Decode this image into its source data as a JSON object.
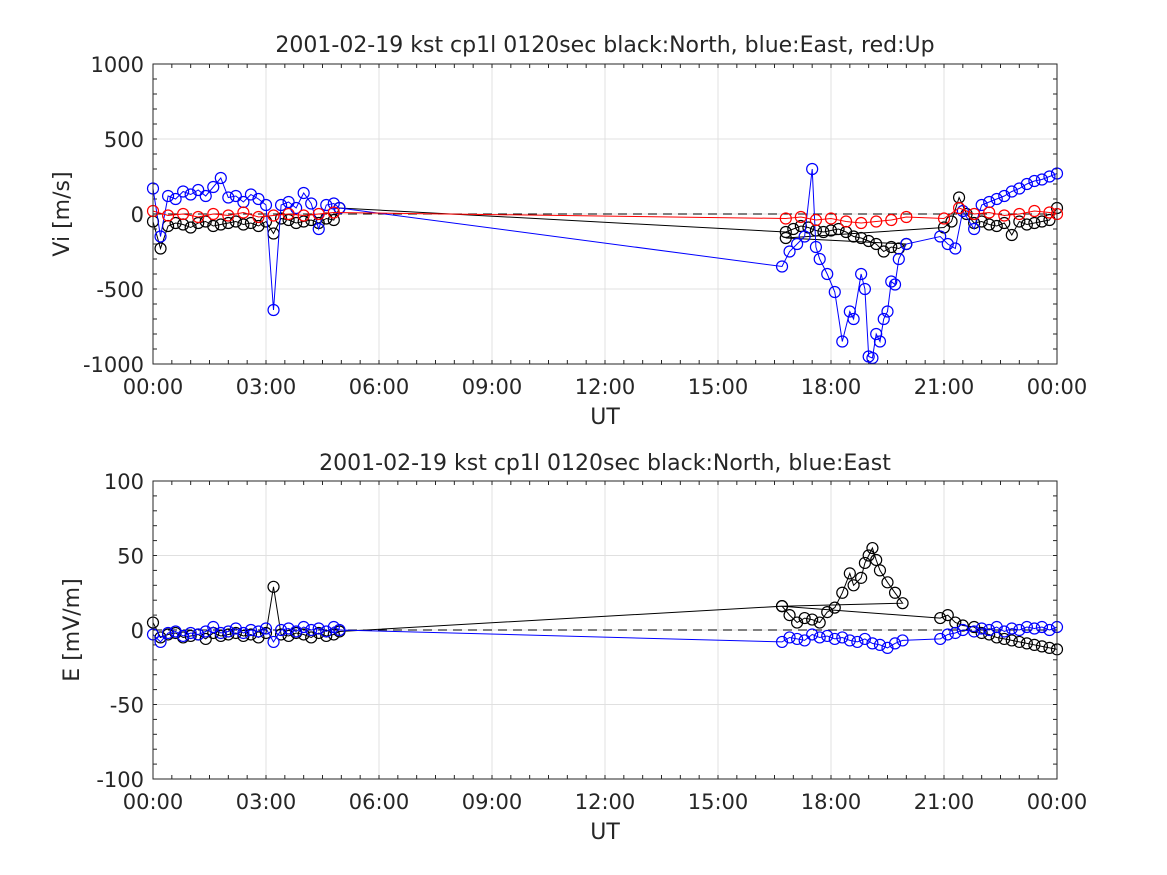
{
  "chart_data": [
    {
      "type": "line",
      "title": "2001-02-19 kst cp1l 0120sec black:North, blue:East, red:Up",
      "xlabel": "UT",
      "ylabel": "Vi [m/s]",
      "xlim_hours": [
        0,
        24
      ],
      "ylim": [
        -1000,
        1000
      ],
      "xticks": [
        "00:00",
        "03:00",
        "06:00",
        "09:00",
        "12:00",
        "15:00",
        "18:00",
        "21:00",
        "00:00"
      ],
      "yticks": [
        "-1000",
        "-500",
        "0",
        "500",
        "1000"
      ],
      "ytick_values": [
        -1000,
        -500,
        0,
        500,
        1000
      ],
      "grid": true,
      "zero_line": true,
      "series": [
        {
          "name": "North",
          "color": "#000000",
          "x": [
            0.0,
            0.2,
            0.4,
            0.6,
            0.8,
            1.0,
            1.2,
            1.4,
            1.6,
            1.8,
            2.0,
            2.2,
            2.4,
            2.6,
            2.8,
            3.0,
            3.2,
            3.4,
            3.6,
            3.8,
            4.0,
            4.2,
            4.4,
            4.6,
            4.8,
            4.95,
            16.8,
            17.0,
            17.2,
            17.4,
            17.6,
            17.8,
            18.0,
            18.2,
            18.4,
            18.6,
            18.8,
            19.0,
            19.2,
            19.4,
            19.6,
            19.8,
            20.0,
            16.8,
            21.0,
            21.2,
            21.4,
            21.6,
            21.8,
            22.0,
            22.2,
            22.4,
            22.6,
            22.8,
            23.0,
            23.2,
            23.4,
            23.6,
            23.8,
            24.0
          ],
          "values": [
            -50,
            -230,
            -80,
            -60,
            -70,
            -90,
            -60,
            -50,
            -80,
            -70,
            -60,
            -50,
            -70,
            -60,
            -80,
            -50,
            -130,
            -30,
            -40,
            -60,
            -50,
            -40,
            -60,
            -30,
            -40,
            40,
            -120,
            -100,
            -80,
            -90,
            -110,
            -120,
            -110,
            -100,
            -120,
            -150,
            -160,
            -180,
            -200,
            -250,
            -220,
            -230,
            -200,
            -160,
            -90,
            -50,
            110,
            0,
            -60,
            -50,
            -70,
            -80,
            -60,
            -140,
            -50,
            -70,
            -60,
            -50,
            -40,
            40
          ]
        },
        {
          "name": "East",
          "color": "#0000ff",
          "x": [
            0.0,
            0.2,
            0.4,
            0.6,
            0.8,
            1.0,
            1.2,
            1.4,
            1.6,
            1.8,
            2.0,
            2.2,
            2.4,
            2.6,
            2.8,
            3.0,
            3.2,
            3.4,
            3.6,
            3.8,
            4.0,
            4.2,
            4.4,
            4.6,
            4.8,
            4.95,
            16.7,
            16.9,
            17.1,
            17.3,
            17.5,
            17.6,
            17.7,
            17.9,
            18.1,
            18.3,
            18.5,
            18.6,
            18.8,
            18.9,
            19.0,
            19.1,
            19.2,
            19.3,
            19.4,
            19.5,
            19.6,
            19.7,
            19.8,
            20.0,
            20.9,
            21.1,
            21.3,
            21.5,
            21.8,
            22.0,
            22.2,
            22.4,
            22.6,
            22.8,
            23.0,
            23.2,
            23.4,
            23.6,
            23.8,
            24.0
          ],
          "values": [
            170,
            -150,
            120,
            100,
            150,
            130,
            160,
            120,
            180,
            240,
            110,
            120,
            80,
            130,
            100,
            60,
            -640,
            60,
            80,
            40,
            140,
            70,
            -100,
            60,
            70,
            40,
            -350,
            -250,
            -200,
            -150,
            300,
            -220,
            -300,
            -400,
            -520,
            -850,
            -650,
            -700,
            -400,
            -500,
            -950,
            -960,
            -800,
            -850,
            -700,
            -650,
            -450,
            -470,
            -300,
            -200,
            -150,
            -200,
            -230,
            20,
            -100,
            60,
            80,
            100,
            120,
            150,
            170,
            200,
            220,
            230,
            250,
            270
          ]
        },
        {
          "name": "Up",
          "color": "#ff0000",
          "x": [
            0.0,
            0.4,
            0.8,
            1.2,
            1.6,
            2.0,
            2.4,
            2.8,
            3.2,
            3.6,
            4.0,
            4.4,
            4.8,
            16.8,
            17.2,
            17.6,
            18.0,
            18.4,
            18.8,
            19.2,
            19.6,
            20.0,
            21.0,
            21.4,
            21.8,
            22.2,
            22.6,
            23.0,
            23.4,
            23.8,
            24.0
          ],
          "values": [
            20,
            -10,
            0,
            -20,
            0,
            -10,
            10,
            -20,
            -10,
            0,
            -10,
            0,
            10,
            -30,
            -20,
            -40,
            -30,
            -50,
            -60,
            -50,
            -40,
            -20,
            -30,
            40,
            0,
            10,
            -10,
            0,
            20,
            10,
            0
          ]
        }
      ]
    },
    {
      "type": "line",
      "title": "2001-02-19 kst cp1l 0120sec black:North, blue:East",
      "xlabel": "UT",
      "ylabel": "E [mV/m]",
      "xlim_hours": [
        0,
        24
      ],
      "ylim": [
        -100,
        100
      ],
      "xticks": [
        "00:00",
        "03:00",
        "06:00",
        "09:00",
        "12:00",
        "15:00",
        "18:00",
        "21:00",
        "00:00"
      ],
      "yticks": [
        "-100",
        "-50",
        "0",
        "50",
        "100"
      ],
      "ytick_values": [
        -100,
        -50,
        0,
        50,
        100
      ],
      "grid": true,
      "zero_line": true,
      "series": [
        {
          "name": "North",
          "color": "#000000",
          "x": [
            0.0,
            0.2,
            0.4,
            0.6,
            0.8,
            1.0,
            1.2,
            1.4,
            1.6,
            1.8,
            2.0,
            2.2,
            2.4,
            2.6,
            2.8,
            3.0,
            3.2,
            3.4,
            3.6,
            3.8,
            4.0,
            4.2,
            4.4,
            4.6,
            4.8,
            4.95,
            16.7,
            16.9,
            17.1,
            17.3,
            17.5,
            17.7,
            17.9,
            18.1,
            18.3,
            18.5,
            18.6,
            18.8,
            18.9,
            19.0,
            19.1,
            19.2,
            19.3,
            19.5,
            19.7,
            19.9,
            16.7,
            20.9,
            21.1,
            21.3,
            21.5,
            21.8,
            22.0,
            22.2,
            22.4,
            22.6,
            22.8,
            23.0,
            23.2,
            23.4,
            23.6,
            23.8,
            24.0
          ],
          "values": [
            5,
            -5,
            -3,
            -2,
            -5,
            -4,
            -3,
            -6,
            -2,
            -4,
            -3,
            -2,
            -4,
            -3,
            -5,
            -2,
            29,
            -3,
            -4,
            -2,
            -3,
            -5,
            -2,
            -4,
            -3,
            -1,
            16,
            10,
            5,
            8,
            7,
            5,
            12,
            15,
            25,
            38,
            30,
            35,
            45,
            50,
            55,
            47,
            40,
            32,
            25,
            18,
            16,
            8,
            10,
            5,
            3,
            2,
            -2,
            -3,
            -5,
            -6,
            -7,
            -8,
            -9,
            -10,
            -11,
            -12,
            -13
          ]
        },
        {
          "name": "East",
          "color": "#0000ff",
          "x": [
            0.0,
            0.2,
            0.4,
            0.6,
            0.8,
            1.0,
            1.2,
            1.4,
            1.6,
            1.8,
            2.0,
            2.2,
            2.4,
            2.6,
            2.8,
            3.0,
            3.2,
            3.4,
            3.6,
            3.8,
            4.0,
            4.2,
            4.4,
            4.6,
            4.8,
            4.95,
            16.7,
            16.9,
            17.1,
            17.3,
            17.5,
            17.7,
            17.9,
            18.1,
            18.3,
            18.5,
            18.7,
            18.9,
            19.1,
            19.3,
            19.5,
            19.7,
            19.9,
            20.9,
            21.1,
            21.3,
            21.5,
            21.8,
            22.0,
            22.2,
            22.4,
            22.6,
            22.8,
            23.0,
            23.2,
            23.4,
            23.6,
            23.8,
            24.0
          ],
          "values": [
            -3,
            -8,
            -2,
            -1,
            -4,
            -2,
            -3,
            -1,
            2,
            -2,
            -1,
            1,
            -2,
            0,
            -1,
            1,
            -8,
            0,
            1,
            -1,
            2,
            0,
            1,
            -1,
            2,
            0,
            -8,
            -5,
            -6,
            -7,
            -3,
            -5,
            -4,
            -6,
            -5,
            -7,
            -8,
            -6,
            -9,
            -10,
            -12,
            -9,
            -7,
            -6,
            -3,
            -2,
            0,
            -1,
            1,
            0,
            2,
            -1,
            1,
            0,
            2,
            1,
            2,
            0,
            2
          ]
        }
      ]
    }
  ]
}
